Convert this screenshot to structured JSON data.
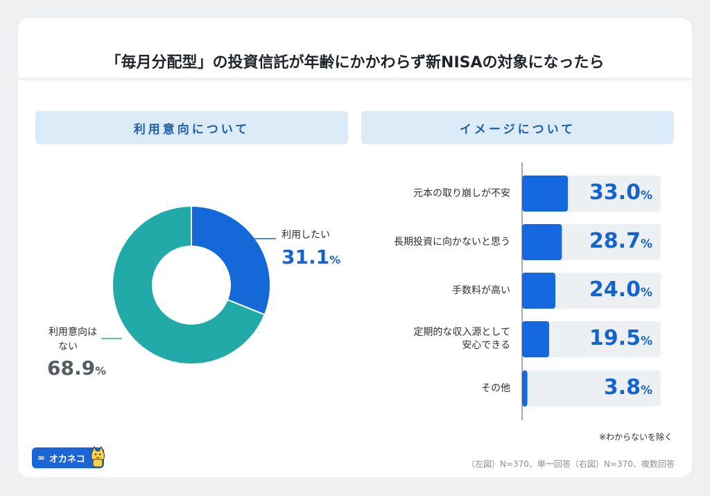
{
  "title": "「毎月分配型」の投資信託が年齢にかかわらず新NISAの対象になったら",
  "left_panel": {
    "header": "利用意向について",
    "segments": [
      {
        "label": "利用したい",
        "value": "31.1",
        "unit": "%",
        "color": "#1468d7"
      },
      {
        "label_line1": "利用意向は",
        "label_line2": "ない",
        "value": "68.9",
        "unit": "%",
        "color": "#22aaa8"
      }
    ]
  },
  "right_panel": {
    "header": "イメージについて",
    "bars": [
      {
        "label_line1": "元本の取り崩しが不安",
        "label_line2": "",
        "value": "33.0",
        "unit": "%"
      },
      {
        "label_line1": "長期投資に向かないと思う",
        "label_line2": "",
        "value": "28.7",
        "unit": "%"
      },
      {
        "label_line1": "手数料が高い",
        "label_line2": "",
        "value": "24.0",
        "unit": "%"
      },
      {
        "label_line1": "定期的な収入源として",
        "label_line2": "安心できる",
        "value": "19.5",
        "unit": "%"
      },
      {
        "label_line1": "その他",
        "label_line2": "",
        "value": "3.8",
        "unit": "%"
      }
    ],
    "note": "※わからないを除く"
  },
  "footnote": "（左図）N=370、単一回答（右図）N=370、複数回答",
  "logo_text": "オカネコ",
  "colors": {
    "bar": "#1668e0",
    "bar_track": "#edf0f3",
    "donut_main": "#1468d7",
    "donut_other": "#22aaa8",
    "value_text": "#1563cf",
    "other_value_text": "#555b61"
  },
  "chart_data": [
    {
      "type": "pie",
      "categories": [
        "利用したい",
        "利用意向はない"
      ],
      "values": [
        31.1,
        68.9
      ],
      "title": "利用意向について"
    },
    {
      "type": "bar",
      "categories": [
        "元本の取り崩しが不安",
        "長期投資に向かないと思う",
        "手数料が高い",
        "定期的な収入源として安心できる",
        "その他"
      ],
      "values": [
        33.0,
        28.7,
        24.0,
        19.5,
        3.8
      ],
      "title": "イメージについて"
    }
  ]
}
